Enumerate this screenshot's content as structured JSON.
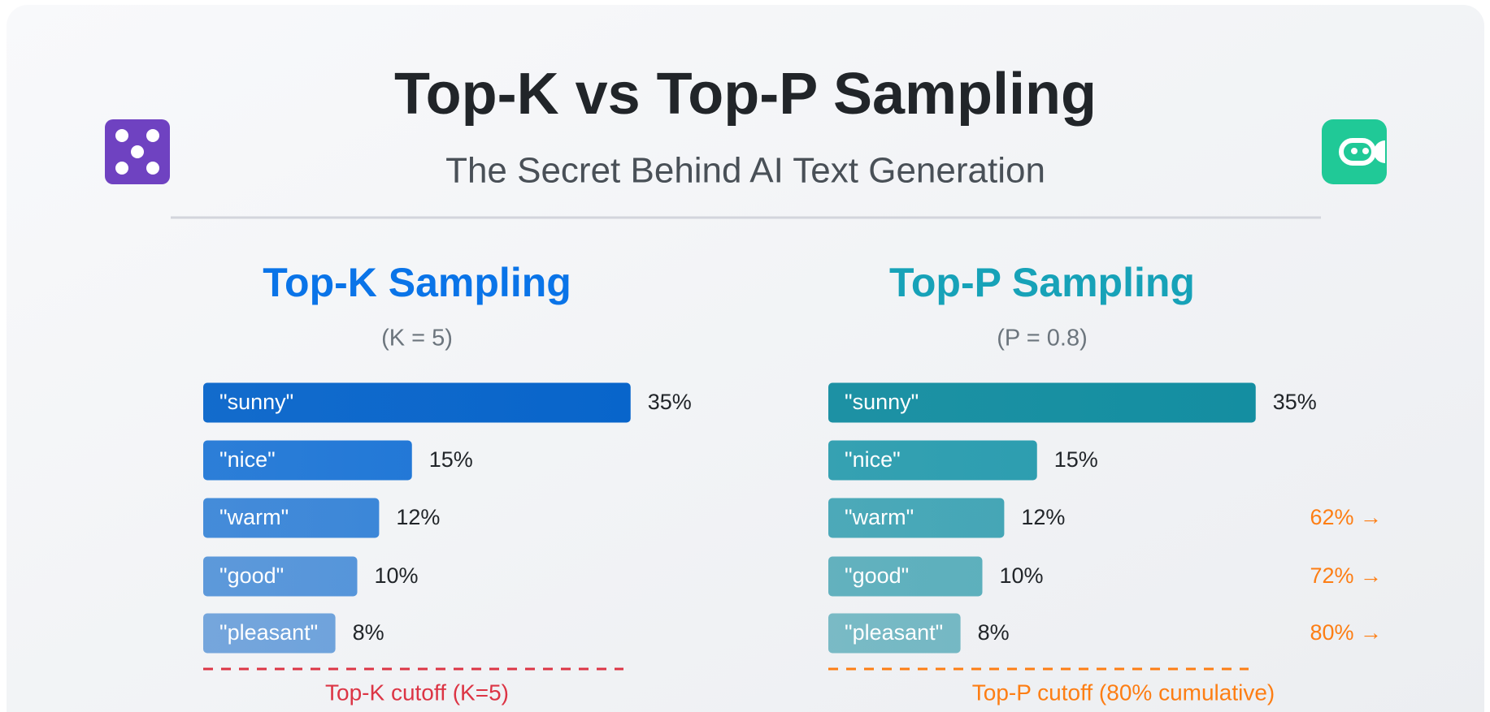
{
  "header": {
    "title": "Top-K vs Top-P Sampling",
    "subtitle": "The Secret Behind AI Text Generation"
  },
  "chart_data": [
    {
      "type": "bar",
      "orientation": "horizontal",
      "title": "Top-K Sampling",
      "subtitle": "(K = 5)",
      "categories": [
        "\"sunny\"",
        "\"nice\"",
        "\"warm\"",
        "\"good\"",
        "\"pleasant\""
      ],
      "values": [
        35,
        15,
        12,
        10,
        8
      ],
      "value_labels": [
        "35%",
        "15%",
        "12%",
        "10%",
        "8%"
      ],
      "color": "#0a74e8",
      "cutoff_label": "Top-K cutoff (K=5)",
      "cutoff_color": "#dc3545"
    },
    {
      "type": "bar",
      "orientation": "horizontal",
      "title": "Top-P Sampling",
      "subtitle": "(P = 0.8)",
      "categories": [
        "\"sunny\"",
        "\"nice\"",
        "\"warm\"",
        "\"good\"",
        "\"pleasant\""
      ],
      "values": [
        35,
        15,
        12,
        10,
        8
      ],
      "value_labels": [
        "35%",
        "15%",
        "12%",
        "10%",
        "8%"
      ],
      "cumulative_labels": [
        null,
        null,
        "62% →",
        "72% →",
        "80% →"
      ],
      "color": "#17a2b8",
      "cutoff_label": "Top-P cutoff (80% cumulative)",
      "cutoff_color": "#fd7e14"
    }
  ]
}
